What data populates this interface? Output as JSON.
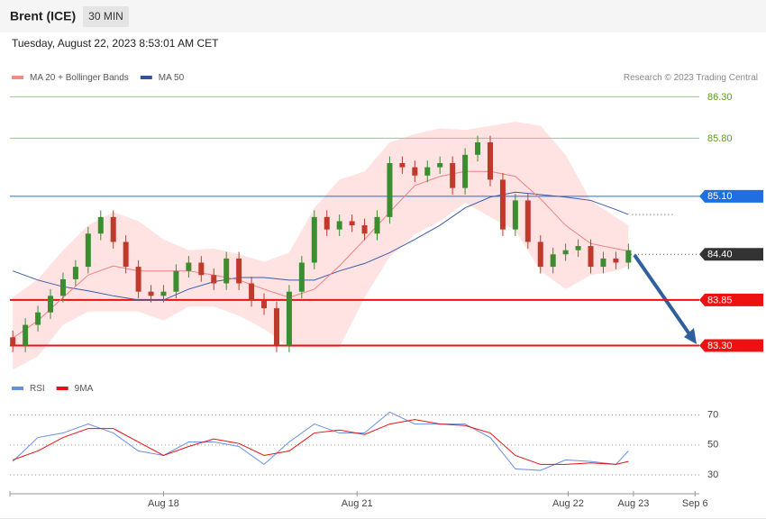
{
  "header": {
    "title": "Brent (ICE)",
    "timeframe": "30 MIN",
    "timestamp": "Tuesday, August 22, 2023 8:53:01 AM CET"
  },
  "chart_data": [
    {
      "type": "candlestick",
      "legend": [
        {
          "name": "MA 20 + Bollinger Bands",
          "color": "#f28b82"
        },
        {
          "name": "MA 50",
          "color": "#2f5597"
        }
      ],
      "credit": "Research © 2023 Trading Central",
      "up_color": "#3c8d2f",
      "down_color": "#c0392b",
      "band_color": "#ffdede",
      "ma20_color": "#f08080",
      "ma50_color": "#3b5ba5",
      "open": [
        83.4,
        83.3,
        83.55,
        83.7,
        83.9,
        84.1,
        84.25,
        84.65,
        84.85,
        84.55,
        84.25,
        83.95,
        83.9,
        83.95,
        84.2,
        84.3,
        84.15,
        84.05,
        84.35,
        84.05,
        83.85,
        83.75,
        83.3,
        83.95,
        84.3,
        84.85,
        84.7,
        84.8,
        84.75,
        84.65,
        84.85,
        85.5,
        85.45,
        85.35,
        85.45,
        85.5,
        85.2,
        85.6,
        85.75,
        85.3,
        84.7,
        85.05,
        84.55,
        84.25,
        84.4,
        84.45,
        84.5,
        84.25,
        84.35,
        84.3
      ],
      "high": [
        83.48,
        83.63,
        83.78,
        83.98,
        84.18,
        84.33,
        84.73,
        84.93,
        84.93,
        84.63,
        84.33,
        84.03,
        84.03,
        84.28,
        84.38,
        84.38,
        84.23,
        84.43,
        84.43,
        84.13,
        83.93,
        83.83,
        84.03,
        84.38,
        84.93,
        84.93,
        84.88,
        84.88,
        84.83,
        84.93,
        85.58,
        85.58,
        85.53,
        85.53,
        85.58,
        85.58,
        85.68,
        85.83,
        85.83,
        85.38,
        85.13,
        85.13,
        84.63,
        84.48,
        84.53,
        84.58,
        84.58,
        84.43,
        84.43,
        84.53
      ],
      "low": [
        83.22,
        83.22,
        83.47,
        83.62,
        83.82,
        84.02,
        84.17,
        84.57,
        84.47,
        84.17,
        83.87,
        83.82,
        83.82,
        83.87,
        84.12,
        84.07,
        83.97,
        83.97,
        83.97,
        83.77,
        83.67,
        83.22,
        83.22,
        83.87,
        84.22,
        84.62,
        84.62,
        84.67,
        84.57,
        84.57,
        84.77,
        85.37,
        85.27,
        85.27,
        85.37,
        85.12,
        85.12,
        85.52,
        85.22,
        84.62,
        84.62,
        84.47,
        84.17,
        84.17,
        84.32,
        84.37,
        84.17,
        84.17,
        84.22,
        84.22
      ],
      "close": [
        83.3,
        83.55,
        83.7,
        83.9,
        84.1,
        84.25,
        84.65,
        84.85,
        84.55,
        84.25,
        83.95,
        83.9,
        83.95,
        84.2,
        84.3,
        84.15,
        84.05,
        84.35,
        84.05,
        83.85,
        83.75,
        83.3,
        83.95,
        84.3,
        84.85,
        84.7,
        84.8,
        84.75,
        84.65,
        84.85,
        85.5,
        85.45,
        85.35,
        85.45,
        85.5,
        85.2,
        85.6,
        85.75,
        85.3,
        84.7,
        85.05,
        84.55,
        84.25,
        84.4,
        84.45,
        84.5,
        84.25,
        84.35,
        84.3,
        84.45
      ],
      "overlays": {
        "x": [
          0,
          2,
          4,
          6,
          8,
          10,
          12,
          14,
          16,
          18,
          20,
          22,
          24,
          26,
          28,
          30,
          32,
          34,
          36,
          38,
          40,
          42,
          44,
          46,
          48,
          49
        ],
        "upper": [
          83.88,
          84.1,
          84.45,
          84.75,
          84.91,
          84.8,
          84.58,
          84.45,
          84.47,
          84.4,
          84.31,
          84.42,
          84.96,
          85.3,
          85.4,
          85.75,
          85.85,
          85.92,
          85.9,
          85.95,
          86.0,
          85.95,
          85.6,
          85.05,
          84.85,
          84.75
        ],
        "lower": [
          83.01,
          83.17,
          83.55,
          83.71,
          83.71,
          83.71,
          83.6,
          83.77,
          83.77,
          83.66,
          83.5,
          83.28,
          83.28,
          83.28,
          83.88,
          84.37,
          84.64,
          84.8,
          85.02,
          84.85,
          84.69,
          84.2,
          83.98,
          84.15,
          84.2,
          84.26
        ],
        "ma20": [
          83.39,
          83.6,
          83.88,
          84.15,
          84.26,
          84.2,
          84.2,
          84.2,
          84.15,
          84.09,
          83.98,
          83.88,
          83.98,
          84.26,
          84.58,
          84.91,
          85.23,
          85.34,
          85.4,
          85.4,
          85.34,
          85.07,
          84.75,
          84.53,
          84.47,
          84.44
        ],
        "ma50": [
          84.2,
          84.09,
          84.01,
          83.96,
          83.9,
          83.85,
          83.85,
          83.98,
          84.07,
          84.12,
          84.12,
          84.09,
          84.09,
          84.2,
          84.29,
          84.42,
          84.58,
          84.75,
          84.96,
          85.09,
          85.15,
          85.12,
          85.09,
          85.05,
          84.94,
          84.88
        ]
      },
      "xlim": [
        -0.3,
        55
      ],
      "xticks": [
        {
          "value": 12,
          "label": "Aug 18"
        },
        {
          "value": 27.4,
          "label": "Aug 21"
        },
        {
          "value": 44.2,
          "label": "Aug 22"
        },
        {
          "value": 49.4,
          "label": "Aug 23"
        },
        {
          "value": 54.3,
          "label": "Sep 6"
        }
      ],
      "ylim": [
        82.98,
        86.38
      ],
      "yticks": [
        {
          "value": 86.3,
          "label": "86.30"
        },
        {
          "value": 85.8,
          "label": "85.80"
        },
        {
          "value": 85.1,
          "label": "85.10"
        },
        {
          "value": 84.4,
          "label": "84.40"
        },
        83.85,
        {
          "value": 83.3,
          "label": "83.30"
        }
      ],
      "ytick_colors": [
        "#5a9a1e",
        "#5a9a1e",
        "#1e6fe0",
        "#333333",
        "#ee1111",
        "#ee1111"
      ],
      "ytick_boxed": [
        false,
        false,
        true,
        true,
        true,
        true
      ]
    },
    {
      "type": "line",
      "x": [
        0,
        2,
        4,
        6,
        8,
        10,
        12,
        14,
        16,
        18,
        20,
        22,
        24,
        26,
        28,
        30,
        32,
        34,
        36,
        38,
        40,
        42,
        44,
        46,
        48,
        49
      ],
      "series": [
        {
          "name": "RSI",
          "color": "#6a8ee0",
          "values": [
            39,
            55,
            58,
            64,
            58,
            46,
            43,
            52,
            52,
            49,
            37,
            52,
            64,
            58,
            58,
            72,
            64,
            64,
            64,
            55,
            34,
            33,
            40,
            39,
            37,
            46
          ]
        },
        {
          "name": "9MA",
          "color": "#e81010",
          "values": [
            40,
            46,
            55,
            61,
            61,
            52,
            43,
            49,
            54,
            51,
            43,
            46,
            58,
            60,
            57,
            64,
            67,
            64,
            63,
            58,
            43,
            37,
            37,
            38,
            37,
            39
          ]
        }
      ],
      "xlim": [
        -0.3,
        55
      ],
      "ylim": [
        24,
        77
      ],
      "yticks": [
        30,
        50,
        70
      ]
    }
  ]
}
